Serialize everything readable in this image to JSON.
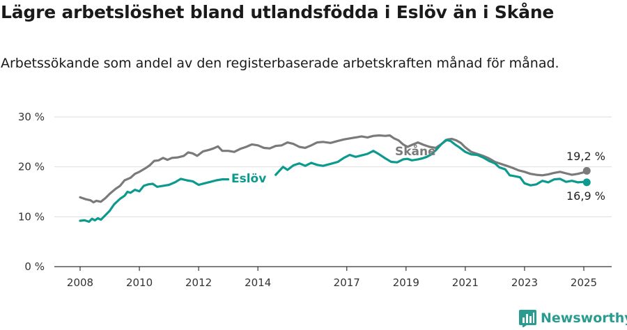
{
  "title": "Lägre arbetslöshet bland utlandsfödda i Eslöv än i Skåne",
  "subtitle": "Arbetssökande som andel av den registerbaserade arbetskraften månad för månad.",
  "brand": {
    "name": "Newsworthy"
  },
  "colors": {
    "eslov": "#0b9a8d",
    "skane": "#7a7a7a",
    "grid": "#dedede",
    "axis": "#333333"
  },
  "chart_data": {
    "type": "line",
    "x_unit": "year",
    "xticks": [
      2008,
      2010,
      2012,
      2014,
      2017,
      2019,
      2021,
      2023,
      2025
    ],
    "yticks": [
      0,
      10,
      20,
      30
    ],
    "ytick_labels": [
      "0 %",
      "10 %",
      "20 %",
      "30 %"
    ],
    "ylim": [
      0,
      30
    ],
    "grid": "horizontal",
    "series": [
      {
        "name": "Skåne",
        "end_label": "19,2 %",
        "points": [
          [
            2008.0,
            13.9
          ],
          [
            2008.2,
            13.5
          ],
          [
            2008.35,
            13.3
          ],
          [
            2008.45,
            12.9
          ],
          [
            2008.55,
            13.2
          ],
          [
            2008.7,
            13.0
          ],
          [
            2008.85,
            13.7
          ],
          [
            2009.0,
            14.6
          ],
          [
            2009.2,
            15.6
          ],
          [
            2009.35,
            16.2
          ],
          [
            2009.5,
            17.3
          ],
          [
            2009.7,
            17.8
          ],
          [
            2009.85,
            18.6
          ],
          [
            2010.0,
            19.0
          ],
          [
            2010.2,
            19.7
          ],
          [
            2010.35,
            20.3
          ],
          [
            2010.5,
            21.2
          ],
          [
            2010.65,
            21.3
          ],
          [
            2010.8,
            21.8
          ],
          [
            2010.95,
            21.4
          ],
          [
            2011.1,
            21.8
          ],
          [
            2011.3,
            21.9
          ],
          [
            2011.5,
            22.2
          ],
          [
            2011.65,
            22.9
          ],
          [
            2011.8,
            22.7
          ],
          [
            2011.95,
            22.2
          ],
          [
            2012.15,
            23.1
          ],
          [
            2012.35,
            23.4
          ],
          [
            2012.5,
            23.7
          ],
          [
            2012.65,
            24.1
          ],
          [
            2012.8,
            23.2
          ],
          [
            2013.0,
            23.2
          ],
          [
            2013.2,
            23.0
          ],
          [
            2013.4,
            23.6
          ],
          [
            2013.6,
            24.0
          ],
          [
            2013.8,
            24.5
          ],
          [
            2014.0,
            24.3
          ],
          [
            2014.2,
            23.8
          ],
          [
            2014.4,
            23.7
          ],
          [
            2014.6,
            24.2
          ],
          [
            2014.8,
            24.3
          ],
          [
            2015.0,
            24.9
          ],
          [
            2015.2,
            24.6
          ],
          [
            2015.4,
            24.0
          ],
          [
            2015.6,
            23.8
          ],
          [
            2015.8,
            24.3
          ],
          [
            2016.0,
            24.9
          ],
          [
            2016.2,
            25.0
          ],
          [
            2016.45,
            24.8
          ],
          [
            2016.7,
            25.2
          ],
          [
            2016.9,
            25.5
          ],
          [
            2017.1,
            25.7
          ],
          [
            2017.3,
            25.9
          ],
          [
            2017.5,
            26.1
          ],
          [
            2017.7,
            25.9
          ],
          [
            2017.9,
            26.2
          ],
          [
            2018.1,
            26.3
          ],
          [
            2018.3,
            26.2
          ],
          [
            2018.45,
            26.3
          ],
          [
            2018.6,
            25.7
          ],
          [
            2018.75,
            25.3
          ],
          [
            2018.9,
            24.5
          ],
          [
            2019.05,
            24.0
          ],
          [
            2019.2,
            24.4
          ],
          [
            2019.4,
            24.9
          ],
          [
            2019.6,
            24.4
          ],
          [
            2019.8,
            24.0
          ],
          [
            2020.0,
            23.8
          ],
          [
            2020.2,
            24.6
          ],
          [
            2020.4,
            25.5
          ],
          [
            2020.55,
            25.6
          ],
          [
            2020.7,
            25.3
          ],
          [
            2020.85,
            24.8
          ],
          [
            2021.0,
            23.9
          ],
          [
            2021.2,
            23.0
          ],
          [
            2021.4,
            22.6
          ],
          [
            2021.6,
            22.2
          ],
          [
            2021.8,
            21.7
          ],
          [
            2022.0,
            21.0
          ],
          [
            2022.2,
            20.6
          ],
          [
            2022.4,
            20.2
          ],
          [
            2022.6,
            19.8
          ],
          [
            2022.8,
            19.3
          ],
          [
            2023.0,
            19.0
          ],
          [
            2023.2,
            18.6
          ],
          [
            2023.4,
            18.4
          ],
          [
            2023.6,
            18.3
          ],
          [
            2023.8,
            18.5
          ],
          [
            2024.0,
            18.8
          ],
          [
            2024.2,
            19.0
          ],
          [
            2024.4,
            18.7
          ],
          [
            2024.6,
            18.4
          ],
          [
            2024.8,
            18.6
          ],
          [
            2025.0,
            18.9
          ],
          [
            2025.1,
            19.2
          ]
        ]
      },
      {
        "name": "Eslöv",
        "end_label": "16,9 %",
        "points": [
          [
            2008.0,
            9.2
          ],
          [
            2008.15,
            9.3
          ],
          [
            2008.3,
            9.0
          ],
          [
            2008.4,
            9.6
          ],
          [
            2008.5,
            9.3
          ],
          [
            2008.6,
            9.7
          ],
          [
            2008.7,
            9.4
          ],
          [
            2008.85,
            10.3
          ],
          [
            2009.0,
            11.2
          ],
          [
            2009.15,
            12.5
          ],
          [
            2009.35,
            13.6
          ],
          [
            2009.5,
            14.2
          ],
          [
            2009.6,
            15.0
          ],
          [
            2009.7,
            14.8
          ],
          [
            2009.85,
            15.4
          ],
          [
            2010.0,
            15.1
          ],
          [
            2010.15,
            16.2
          ],
          [
            2010.3,
            16.5
          ],
          [
            2010.45,
            16.6
          ],
          [
            2010.6,
            16.0
          ],
          [
            2010.8,
            16.2
          ],
          [
            2011.0,
            16.4
          ],
          [
            2011.2,
            16.9
          ],
          [
            2011.4,
            17.6
          ],
          [
            2011.6,
            17.3
          ],
          [
            2011.8,
            17.1
          ],
          [
            2012.0,
            16.4
          ],
          [
            2012.2,
            16.7
          ],
          [
            2012.4,
            17.0
          ],
          [
            2012.6,
            17.3
          ],
          [
            2012.8,
            17.5
          ],
          [
            2013.0,
            17.5
          ],
          [
            2014.6,
            18.4
          ],
          [
            2014.85,
            20.0
          ],
          [
            2015.0,
            19.4
          ],
          [
            2015.2,
            20.3
          ],
          [
            2015.4,
            20.7
          ],
          [
            2015.6,
            20.2
          ],
          [
            2015.8,
            20.8
          ],
          [
            2016.0,
            20.4
          ],
          [
            2016.2,
            20.2
          ],
          [
            2016.45,
            20.6
          ],
          [
            2016.7,
            21.0
          ],
          [
            2016.9,
            21.8
          ],
          [
            2017.1,
            22.4
          ],
          [
            2017.3,
            22.0
          ],
          [
            2017.5,
            22.3
          ],
          [
            2017.7,
            22.6
          ],
          [
            2017.9,
            23.2
          ],
          [
            2018.1,
            22.5
          ],
          [
            2018.3,
            21.7
          ],
          [
            2018.5,
            21.0
          ],
          [
            2018.7,
            20.9
          ],
          [
            2018.9,
            21.5
          ],
          [
            2019.05,
            21.6
          ],
          [
            2019.2,
            21.3
          ],
          [
            2019.4,
            21.5
          ],
          [
            2019.55,
            21.7
          ],
          [
            2019.7,
            22.0
          ],
          [
            2019.85,
            22.5
          ],
          [
            2020.0,
            23.3
          ],
          [
            2020.2,
            24.6
          ],
          [
            2020.35,
            25.4
          ],
          [
            2020.5,
            25.2
          ],
          [
            2020.65,
            24.5
          ],
          [
            2020.8,
            23.9
          ],
          [
            2021.0,
            23.0
          ],
          [
            2021.2,
            22.5
          ],
          [
            2021.4,
            22.4
          ],
          [
            2021.6,
            21.9
          ],
          [
            2021.8,
            21.2
          ],
          [
            2022.0,
            20.7
          ],
          [
            2022.15,
            19.9
          ],
          [
            2022.35,
            19.5
          ],
          [
            2022.5,
            18.3
          ],
          [
            2022.7,
            18.1
          ],
          [
            2022.85,
            17.9
          ],
          [
            2023.0,
            16.7
          ],
          [
            2023.2,
            16.3
          ],
          [
            2023.4,
            16.5
          ],
          [
            2023.6,
            17.2
          ],
          [
            2023.8,
            16.9
          ],
          [
            2024.0,
            17.5
          ],
          [
            2024.2,
            17.6
          ],
          [
            2024.4,
            17.0
          ],
          [
            2024.6,
            17.2
          ],
          [
            2024.8,
            16.9
          ],
          [
            2025.0,
            17.0
          ],
          [
            2025.1,
            16.9
          ]
        ]
      }
    ]
  }
}
